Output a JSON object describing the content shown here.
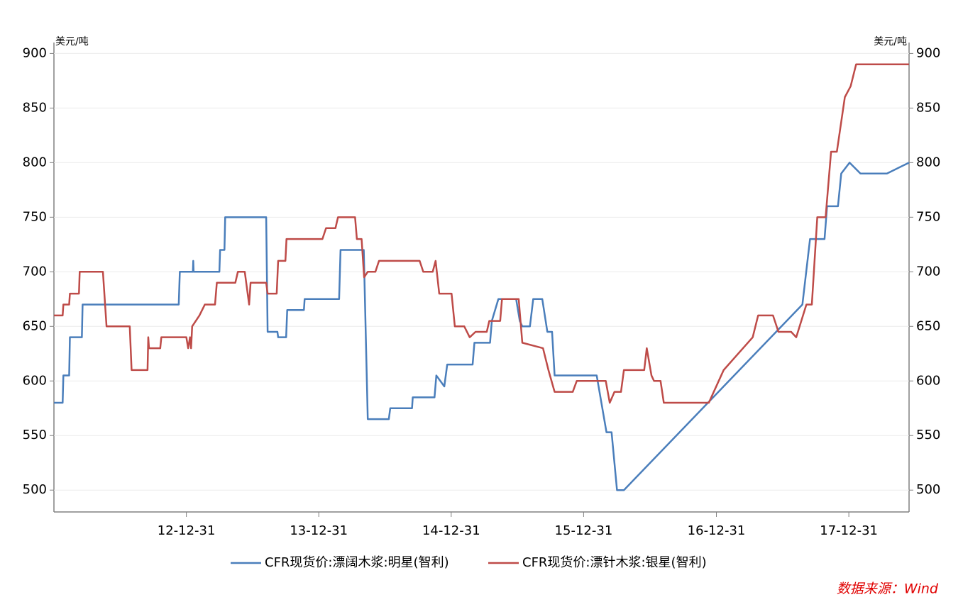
{
  "chart_data": {
    "type": "line",
    "y_unit": "美元/吨",
    "y2_unit": "美元/吨",
    "source": "数据来源：Wind",
    "xlim": [
      "12-01-01",
      "18-06-15"
    ],
    "xticks": [
      "12-12-31",
      "13-12-31",
      "14-12-31",
      "15-12-31",
      "16-12-31",
      "17-12-31"
    ],
    "ylim": [
      480,
      910
    ],
    "yticks": [
      500,
      550,
      600,
      650,
      700,
      750,
      800,
      850,
      900
    ],
    "y2lim": [
      480,
      910
    ],
    "y2ticks": [
      500,
      550,
      600,
      650,
      700,
      750,
      800,
      850,
      900
    ],
    "grid": true,
    "legend": "bottom",
    "series": [
      {
        "name": "CFR现货价:漂阔木浆:明星(智利)",
        "color": "#4a7ebb",
        "x": [
          "12-01-01",
          "12-01-25",
          "12-01-27",
          "12-02-12",
          "12-02-14",
          "12-03-18",
          "12-03-20",
          "12-12-10",
          "12-12-13",
          "13-01-18",
          "13-01-19",
          "13-01-20",
          "13-04-01",
          "13-04-03",
          "13-04-15",
          "13-04-17",
          "13-08-08",
          "13-08-12",
          "13-09-08",
          "13-09-10",
          "13-10-02",
          "13-10-05",
          "13-11-20",
          "13-11-22",
          "14-02-25",
          "14-03-01",
          "14-05-04",
          "14-05-15",
          "14-07-12",
          "14-07-16",
          "14-09-14",
          "14-09-16",
          "14-11-15",
          "14-11-20",
          "14-12-12",
          "14-12-20",
          "15-02-28",
          "15-03-05",
          "15-04-17",
          "15-04-22",
          "15-05-10",
          "15-06-28",
          "15-07-08",
          "15-07-15",
          "15-08-05",
          "15-08-14",
          "15-09-08",
          "15-09-22",
          "15-10-05",
          "15-10-12",
          "16-02-05",
          "16-03-03",
          "16-03-17",
          "16-04-01",
          "16-04-20",
          "17-08-25",
          "17-09-15",
          "17-10-25",
          "17-11-01",
          "17-12-01",
          "17-12-10",
          "18-01-02",
          "18-02-01",
          "18-04-15",
          "18-06-15"
        ],
        "values": [
          580,
          580,
          605,
          605,
          640,
          640,
          670,
          670,
          700,
          700,
          710,
          700,
          700,
          720,
          720,
          750,
          750,
          645,
          645,
          640,
          640,
          665,
          665,
          675,
          675,
          720,
          720,
          565,
          565,
          575,
          575,
          585,
          585,
          605,
          595,
          615,
          615,
          635,
          635,
          655,
          675,
          675,
          655,
          650,
          650,
          675,
          675,
          645,
          645,
          605,
          605,
          553,
          553,
          500,
          500,
          670,
          730,
          730,
          760,
          760,
          790,
          800,
          790,
          790,
          800
        ]
      },
      {
        "name": "CFR现货价:漂针木浆:银星(智利)",
        "color": "#be4b48",
        "x": [
          "12-01-01",
          "12-01-25",
          "12-01-27",
          "12-02-12",
          "12-02-14",
          "12-03-10",
          "12-03-12",
          "12-05-15",
          "12-05-25",
          "12-07-28",
          "12-08-02",
          "12-09-15",
          "12-09-17",
          "12-09-19",
          "12-10-20",
          "12-10-23",
          "12-12-31",
          "13-01-05",
          "13-01-10",
          "13-01-13",
          "13-01-16",
          "13-02-05",
          "13-02-20",
          "13-03-20",
          "13-03-25",
          "13-05-15",
          "13-05-22",
          "13-06-10",
          "13-06-14",
          "13-06-22",
          "13-06-26",
          "13-08-08",
          "13-08-12",
          "13-09-06",
          "13-09-10",
          "13-09-30",
          "13-10-03",
          "14-01-10",
          "14-01-20",
          "14-02-15",
          "14-02-22",
          "14-04-10",
          "14-04-15",
          "14-04-28",
          "14-05-05",
          "14-05-15",
          "14-06-05",
          "14-06-15",
          "14-10-05",
          "14-10-15",
          "14-11-10",
          "14-11-18",
          "14-11-28",
          "15-01-01",
          "15-01-10",
          "15-02-05",
          "15-02-20",
          "15-03-08",
          "15-04-08",
          "15-04-15",
          "15-05-15",
          "15-05-20",
          "15-07-05",
          "15-07-15",
          "15-09-10",
          "15-09-25",
          "15-10-12",
          "15-12-01",
          "15-12-12",
          "16-03-01",
          "16-03-12",
          "16-03-25",
          "16-04-12",
          "16-04-20",
          "16-06-15",
          "16-06-22",
          "16-07-05",
          "16-07-12",
          "16-07-30",
          "16-08-08",
          "16-12-10",
          "17-01-20",
          "17-04-10",
          "17-04-25",
          "17-06-05",
          "17-06-20",
          "17-07-25",
          "17-08-08",
          "17-09-05",
          "17-09-20",
          "17-10-05",
          "17-10-28",
          "17-11-12",
          "17-11-28",
          "17-12-20",
          "18-01-05",
          "18-01-20",
          "18-06-15"
        ],
        "values": [
          660,
          660,
          670,
          670,
          680,
          680,
          700,
          700,
          650,
          650,
          610,
          610,
          640,
          630,
          630,
          640,
          640,
          630,
          640,
          630,
          650,
          660,
          670,
          670,
          690,
          690,
          700,
          700,
          690,
          670,
          690,
          690,
          680,
          680,
          710,
          710,
          730,
          730,
          740,
          740,
          750,
          750,
          730,
          730,
          695,
          700,
          700,
          710,
          710,
          700,
          700,
          710,
          680,
          680,
          650,
          650,
          640,
          645,
          645,
          655,
          655,
          675,
          675,
          635,
          630,
          610,
          590,
          590,
          600,
          600,
          580,
          590,
          590,
          610,
          610,
          630,
          605,
          600,
          600,
          580,
          580,
          610,
          640,
          660,
          660,
          645,
          645,
          640,
          670,
          670,
          750,
          750,
          810,
          810,
          860,
          870,
          890,
          890
        ]
      }
    ]
  }
}
